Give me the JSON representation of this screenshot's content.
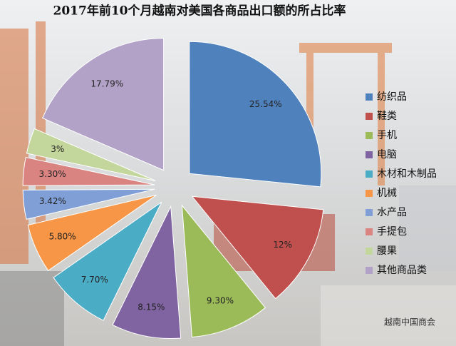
{
  "chart_data": {
    "type": "pie",
    "title": "2017年前10个月越南对美国各商品出口额的所占比率",
    "categories": [
      "纺织品",
      "鞋类",
      "手机",
      "电脑",
      "木材和木制品",
      "机械",
      "水产品",
      "手提包",
      "腰果",
      "其他商品类"
    ],
    "values": [
      25.54,
      12,
      9.3,
      8.15,
      7.7,
      5.8,
      3.42,
      3.3,
      3,
      17.79
    ],
    "value_labels": [
      "25.54%",
      "12%",
      "9.30%",
      "8.15%",
      "7.70%",
      "5.80%",
      "3.42%",
      "3.30%",
      "3%",
      "17.79%"
    ],
    "colors": [
      "#4f81bd",
      "#c0504d",
      "#9bbb59",
      "#8064a2",
      "#4bacc6",
      "#f79646",
      "#7f9fd6",
      "#d98481",
      "#c3d69b",
      "#b3a2c7"
    ],
    "legend": "right"
  },
  "watermark": "越南中国商会"
}
